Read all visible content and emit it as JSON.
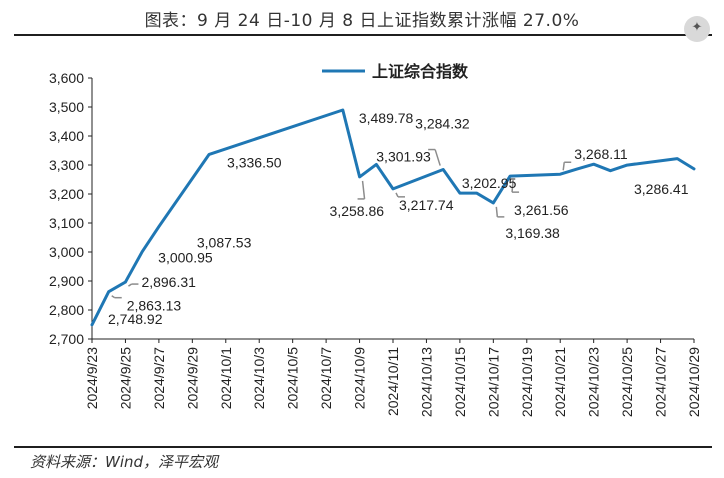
{
  "header": {
    "title": "图表：9 月 24 日-10 月 8 日上证指数累计涨幅 27.0%"
  },
  "footer": {
    "source": "资料来源：Wind，泽平宏观"
  },
  "logo": {
    "icon": "ai-sparkle-icon"
  },
  "chart_data": {
    "type": "line",
    "title": "图表：9 月 24 日-10 月 8 日上证指数累计涨幅 27.0%",
    "xlabel": "",
    "ylabel": "",
    "ylim": [
      2700,
      3600
    ],
    "yticks": [
      "2,700",
      "2,800",
      "2,900",
      "3,000",
      "3,100",
      "3,200",
      "3,300",
      "3,400",
      "3,500",
      "3,600"
    ],
    "xlim": [
      "2024/9/23",
      "2024/10/29"
    ],
    "xticks": [
      "2024/9/23",
      "2024/9/25",
      "2024/9/27",
      "2024/9/29",
      "2024/10/1",
      "2024/10/3",
      "2024/10/5",
      "2024/10/7",
      "2024/10/9",
      "2024/10/11",
      "2024/10/13",
      "2024/10/15",
      "2024/10/17",
      "2024/10/19",
      "2024/10/21",
      "2024/10/23",
      "2024/10/25",
      "2024/10/27",
      "2024/10/29"
    ],
    "grid": false,
    "legend": "top-center",
    "series": [
      {
        "name": "上证综合指数",
        "color": "#1f77b4",
        "points": [
          {
            "x": "2024/9/23",
            "y": 2748.92
          },
          {
            "x": "2024/9/24",
            "y": 2863.13
          },
          {
            "x": "2024/9/25",
            "y": 2896.31
          },
          {
            "x": "2024/9/26",
            "y": 3000.95
          },
          {
            "x": "2024/9/27",
            "y": 3087.53
          },
          {
            "x": "2024/9/30",
            "y": 3336.5
          },
          {
            "x": "2024/10/8",
            "y": 3489.78
          },
          {
            "x": "2024/10/9",
            "y": 3258.86
          },
          {
            "x": "2024/10/10",
            "y": 3301.93
          },
          {
            "x": "2024/10/11",
            "y": 3217.74
          },
          {
            "x": "2024/10/14",
            "y": 3284.32
          },
          {
            "x": "2024/10/15",
            "y": 3202.95
          },
          {
            "x": "2024/10/16",
            "y": 3202.95
          },
          {
            "x": "2024/10/17",
            "y": 3169.38
          },
          {
            "x": "2024/10/18",
            "y": 3261.56
          },
          {
            "x": "2024/10/21",
            "y": 3268.11
          },
          {
            "x": "2024/10/22",
            "y": 3285.87
          },
          {
            "x": "2024/10/23",
            "y": 3302.8
          },
          {
            "x": "2024/10/24",
            "y": 3280.26
          },
          {
            "x": "2024/10/25",
            "y": 3299.7
          },
          {
            "x": "2024/10/28",
            "y": 3322.2
          },
          {
            "x": "2024/10/29",
            "y": 3286.41
          }
        ]
      }
    ],
    "annotations": [
      {
        "x": "2024/9/23",
        "y": 2748.92,
        "text": "2,748.92"
      },
      {
        "x": "2024/9/24",
        "y": 2863.13,
        "text": "2,863.13"
      },
      {
        "x": "2024/9/25",
        "y": 2896.31,
        "text": "2,896.31"
      },
      {
        "x": "2024/9/26",
        "y": 3000.95,
        "text": "3,000.95"
      },
      {
        "x": "2024/9/27",
        "y": 3087.53,
        "text": "3,087.53"
      },
      {
        "x": "2024/9/30",
        "y": 3336.5,
        "text": "3,336.50"
      },
      {
        "x": "2024/10/8",
        "y": 3489.78,
        "text": "3,489.78"
      },
      {
        "x": "2024/10/9",
        "y": 3258.86,
        "text": "3,258.86"
      },
      {
        "x": "2024/10/10",
        "y": 3301.93,
        "text": "3,301.93"
      },
      {
        "x": "2024/10/11",
        "y": 3217.74,
        "text": "3,217.74"
      },
      {
        "x": "2024/10/14",
        "y": 3284.32,
        "text": "3,284.32"
      },
      {
        "x": "2024/10/15",
        "y": 3202.95,
        "text": "3,202.95"
      },
      {
        "x": "2024/10/17",
        "y": 3169.38,
        "text": "3,169.38"
      },
      {
        "x": "2024/10/18",
        "y": 3261.56,
        "text": "3,261.56"
      },
      {
        "x": "2024/10/21",
        "y": 3268.11,
        "text": "3,268.11"
      },
      {
        "x": "2024/10/29",
        "y": 3286.41,
        "text": "3,286.41"
      }
    ]
  }
}
